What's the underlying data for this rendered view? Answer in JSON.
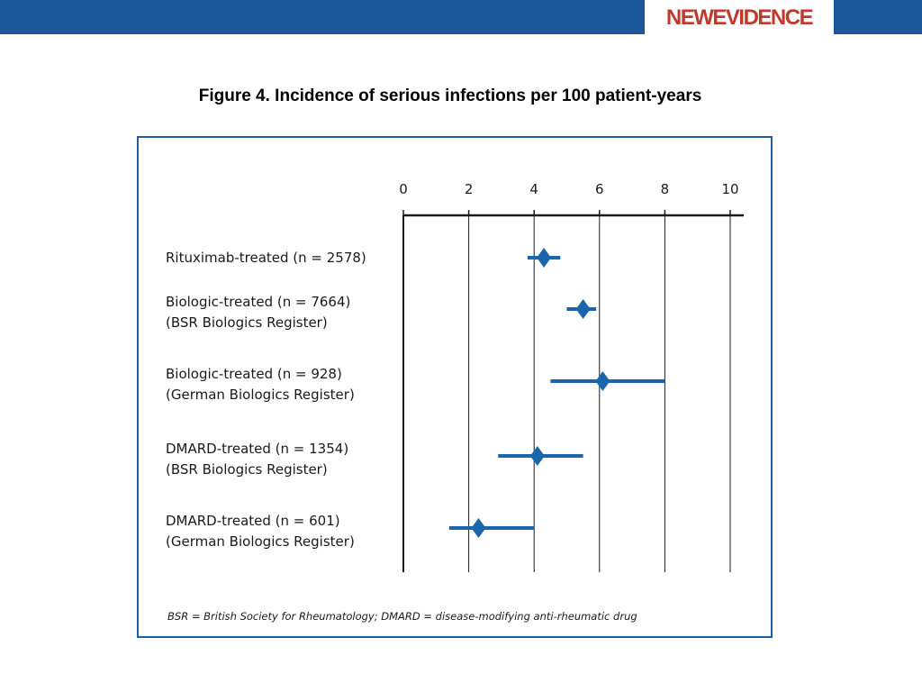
{
  "header": {
    "logo_text": "NEWEVIDENCE",
    "bar_color": "#1d579b",
    "logo_color": "#c0392b"
  },
  "title": "Figure 4. Incidence of serious infections per 100 patient-years",
  "chart_data": {
    "type": "forest",
    "xlim": [
      0,
      10
    ],
    "xticks": [
      0,
      2,
      4,
      6,
      8,
      10
    ],
    "grid": true,
    "marker_color": "#1a66ad",
    "rows": [
      {
        "label": "Rituximab-treated (n = 2578)",
        "sublabel": "",
        "estimate": 4.3,
        "lower": 3.8,
        "upper": 4.8
      },
      {
        "label": "Biologic-treated (n = 7664)",
        "sublabel": "(BSR Biologics Register)",
        "estimate": 5.5,
        "lower": 5.0,
        "upper": 5.9
      },
      {
        "label": "Biologic-treated (n = 928)",
        "sublabel": "(German Biologics Register)",
        "estimate": 6.1,
        "lower": 4.5,
        "upper": 8.0
      },
      {
        "label": "DMARD-treated (n = 1354)",
        "sublabel": "(BSR Biologics Register)",
        "estimate": 4.1,
        "lower": 2.9,
        "upper": 5.5
      },
      {
        "label": "DMARD-treated (n = 601)",
        "sublabel": "(German Biologics Register)",
        "estimate": 2.3,
        "lower": 1.4,
        "upper": 4.0
      }
    ]
  },
  "footnote": "BSR = British Society for Rheumatology; DMARD = disease-modifying anti-rheumatic drug"
}
